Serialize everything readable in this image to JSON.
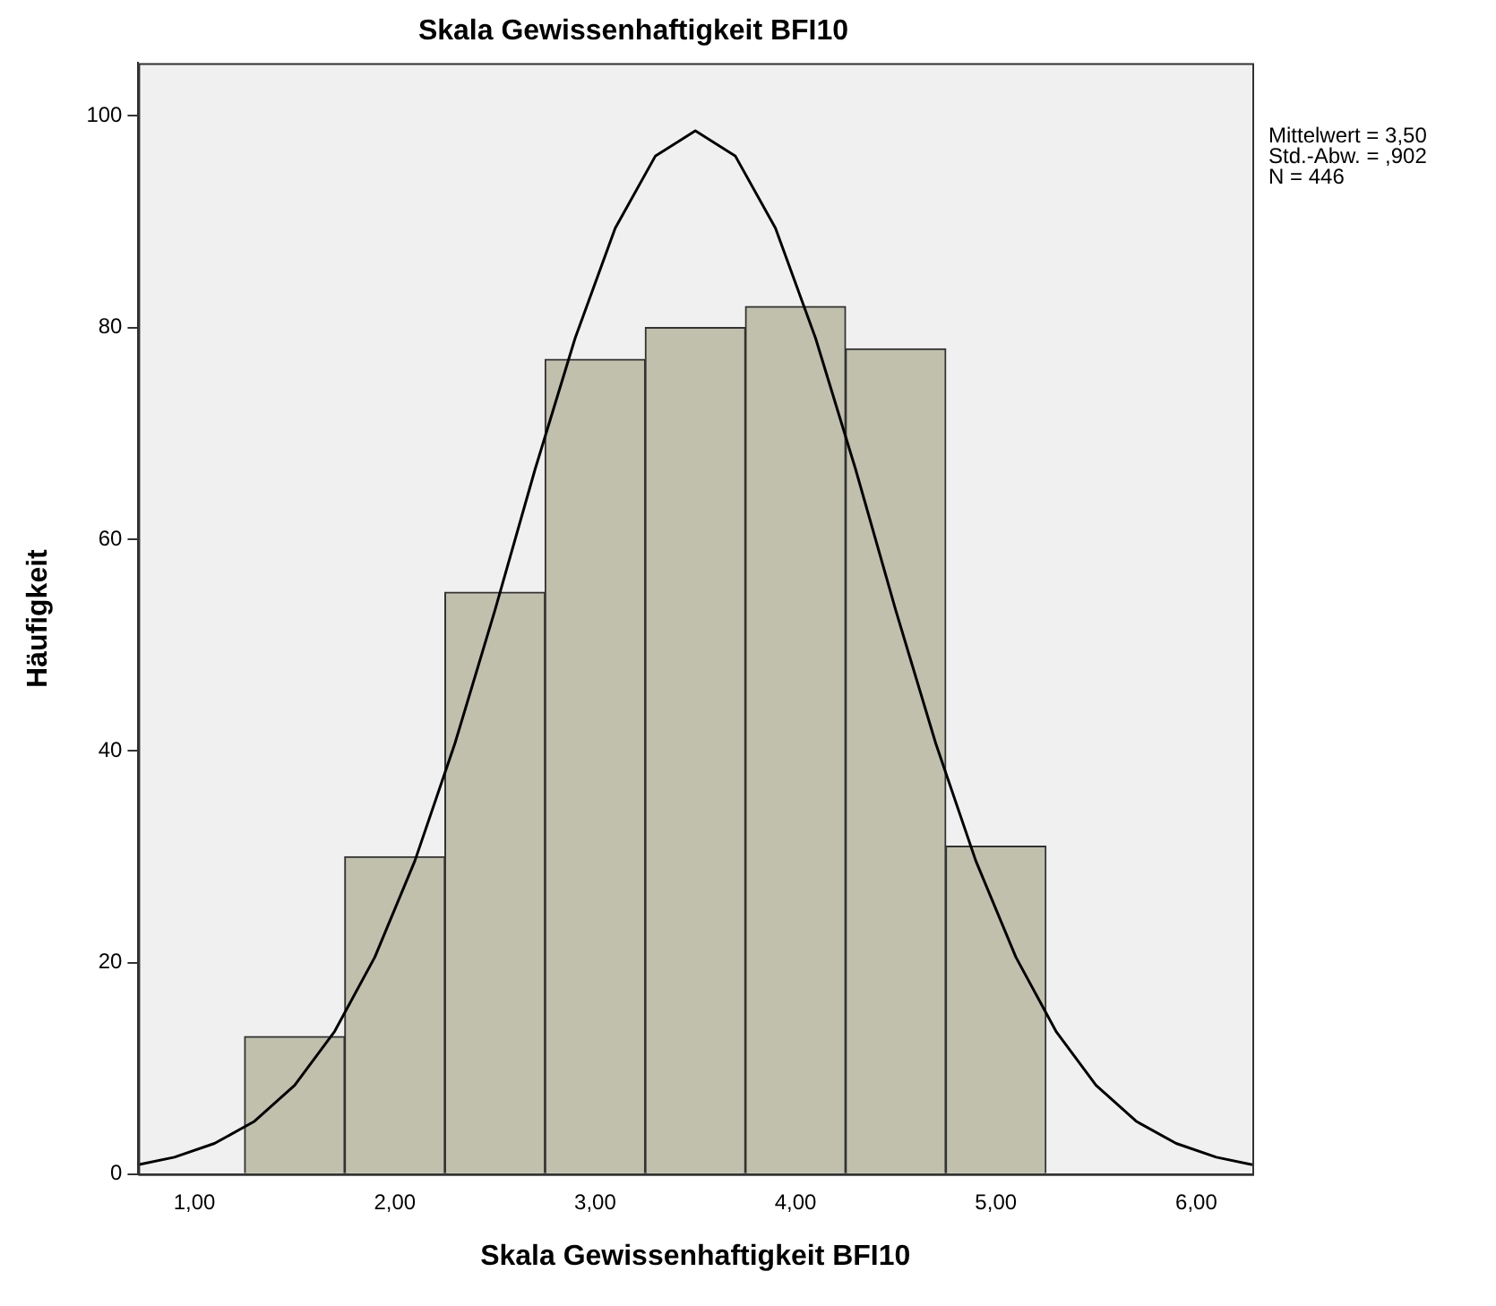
{
  "chart_data": {
    "type": "histogram",
    "title": "Skala Gewissenhaftigkeit BFI10",
    "xlabel": "Skala Gewissenhaftigkeit BFI10",
    "ylabel": "Häufigkeit",
    "bins": [
      1.25,
      1.75,
      2.25,
      2.75,
      3.25,
      3.75,
      4.25,
      4.75,
      5.25
    ],
    "values": [
      13,
      30,
      55,
      77,
      80,
      82,
      78,
      31
    ],
    "color": "#c0c0ad",
    "series": [
      {
        "type": "line",
        "color": "#000000",
        "x": [
          0.72,
          0.9,
          1.1,
          1.3,
          1.5,
          1.7,
          1.9,
          2.1,
          2.3,
          2.5,
          2.7,
          2.9,
          3.1,
          3.3,
          3.5,
          3.7,
          3.9,
          4.1,
          4.3,
          4.5,
          4.7,
          4.9,
          5.1,
          5.3,
          5.5,
          5.7,
          5.9,
          6.1,
          6.28
        ],
        "values": [
          0.9,
          1.6,
          2.9,
          5,
          8.4,
          13.5,
          20.5,
          29.6,
          40.7,
          53.3,
          66.6,
          79,
          89.4,
          96.2,
          98.6,
          96.2,
          89.4,
          79,
          66.6,
          53.3,
          40.7,
          29.6,
          20.5,
          13.5,
          8.4,
          5,
          2.9,
          1.6,
          0.9
        ]
      }
    ],
    "xlim": [
      0.72,
      6.28
    ],
    "ylim": [
      0,
      105
    ],
    "xticks": [
      {
        "value": 1,
        "label": "1,00"
      },
      {
        "value": 2,
        "label": "2,00"
      },
      {
        "value": 3,
        "label": "3,00"
      },
      {
        "value": 4,
        "label": "4,00"
      },
      {
        "value": 5,
        "label": "5,00"
      },
      {
        "value": 6,
        "label": "6,00"
      }
    ],
    "yticks": [
      0,
      20,
      40,
      60,
      80,
      100
    ],
    "annotations": [
      "Mittelwert = 3,50",
      "Std.-Abw. = ,902",
      "N = 446"
    ],
    "grid": false,
    "legend": false
  }
}
